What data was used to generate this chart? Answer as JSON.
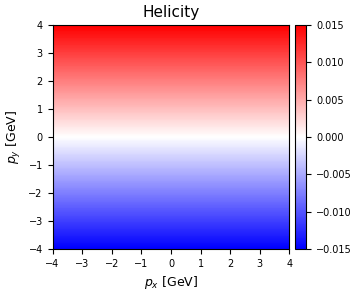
{
  "title": "Helicity",
  "xlabel": "$p_x$ [GeV]",
  "ylabel": "$p_y$ [GeV]",
  "xlim": [
    -4,
    4
  ],
  "ylim": [
    -4,
    4
  ],
  "vmin": -0.015,
  "vmax": 0.015,
  "xticks": [
    -4,
    -3,
    -2,
    -1,
    0,
    1,
    2,
    3,
    4
  ],
  "yticks": [
    -4,
    -3,
    -2,
    -1,
    0,
    1,
    2,
    3,
    4
  ],
  "colormap": "bwr",
  "cbar_ticks": [
    -0.015,
    -0.01,
    -0.005,
    0.0,
    0.005,
    0.01,
    0.015
  ],
  "grid_points": 300,
  "figsize": [
    3.58,
    2.96
  ],
  "dpi": 100,
  "title_fontsize": 11,
  "label_fontsize": 9,
  "tick_fontsize": 7,
  "cbar_fontsize": 7
}
